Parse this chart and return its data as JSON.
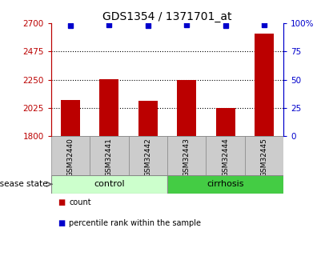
{
  "title": "GDS1354 / 1371701_at",
  "samples": [
    "GSM32440",
    "GSM32441",
    "GSM32442",
    "GSM32443",
    "GSM32444",
    "GSM32445"
  ],
  "counts": [
    2090,
    2255,
    2080,
    2245,
    2020,
    2620
  ],
  "percentile_ranks": [
    98,
    99,
    98,
    99,
    98,
    99
  ],
  "ylim_left": [
    1800,
    2700
  ],
  "ylim_right": [
    0,
    100
  ],
  "yticks_left": [
    1800,
    2025,
    2250,
    2475,
    2700
  ],
  "ytick_labels_left": [
    "1800",
    "2025",
    "2250",
    "2475",
    "2700"
  ],
  "yticks_right": [
    0,
    25,
    50,
    75,
    100
  ],
  "ytick_labels_right": [
    "0",
    "25",
    "50",
    "75",
    "100%"
  ],
  "hlines": [
    2025,
    2250,
    2475
  ],
  "bar_color": "#bb0000",
  "dot_color": "#0000cc",
  "groups": [
    {
      "label": "control",
      "start": 0,
      "end": 2,
      "color": "#ccffcc"
    },
    {
      "label": "cirrhosis",
      "start": 3,
      "end": 5,
      "color": "#44cc44"
    }
  ],
  "group_label": "disease state",
  "legend_items": [
    {
      "label": "count",
      "color": "#bb0000"
    },
    {
      "label": "percentile rank within the sample",
      "color": "#0000cc"
    }
  ],
  "title_fontsize": 10,
  "tick_label_fontsize": 7.5,
  "bar_width": 0.5,
  "label_box_color": "#cccccc",
  "label_box_edge": "#888888",
  "background_color": "#ffffff"
}
